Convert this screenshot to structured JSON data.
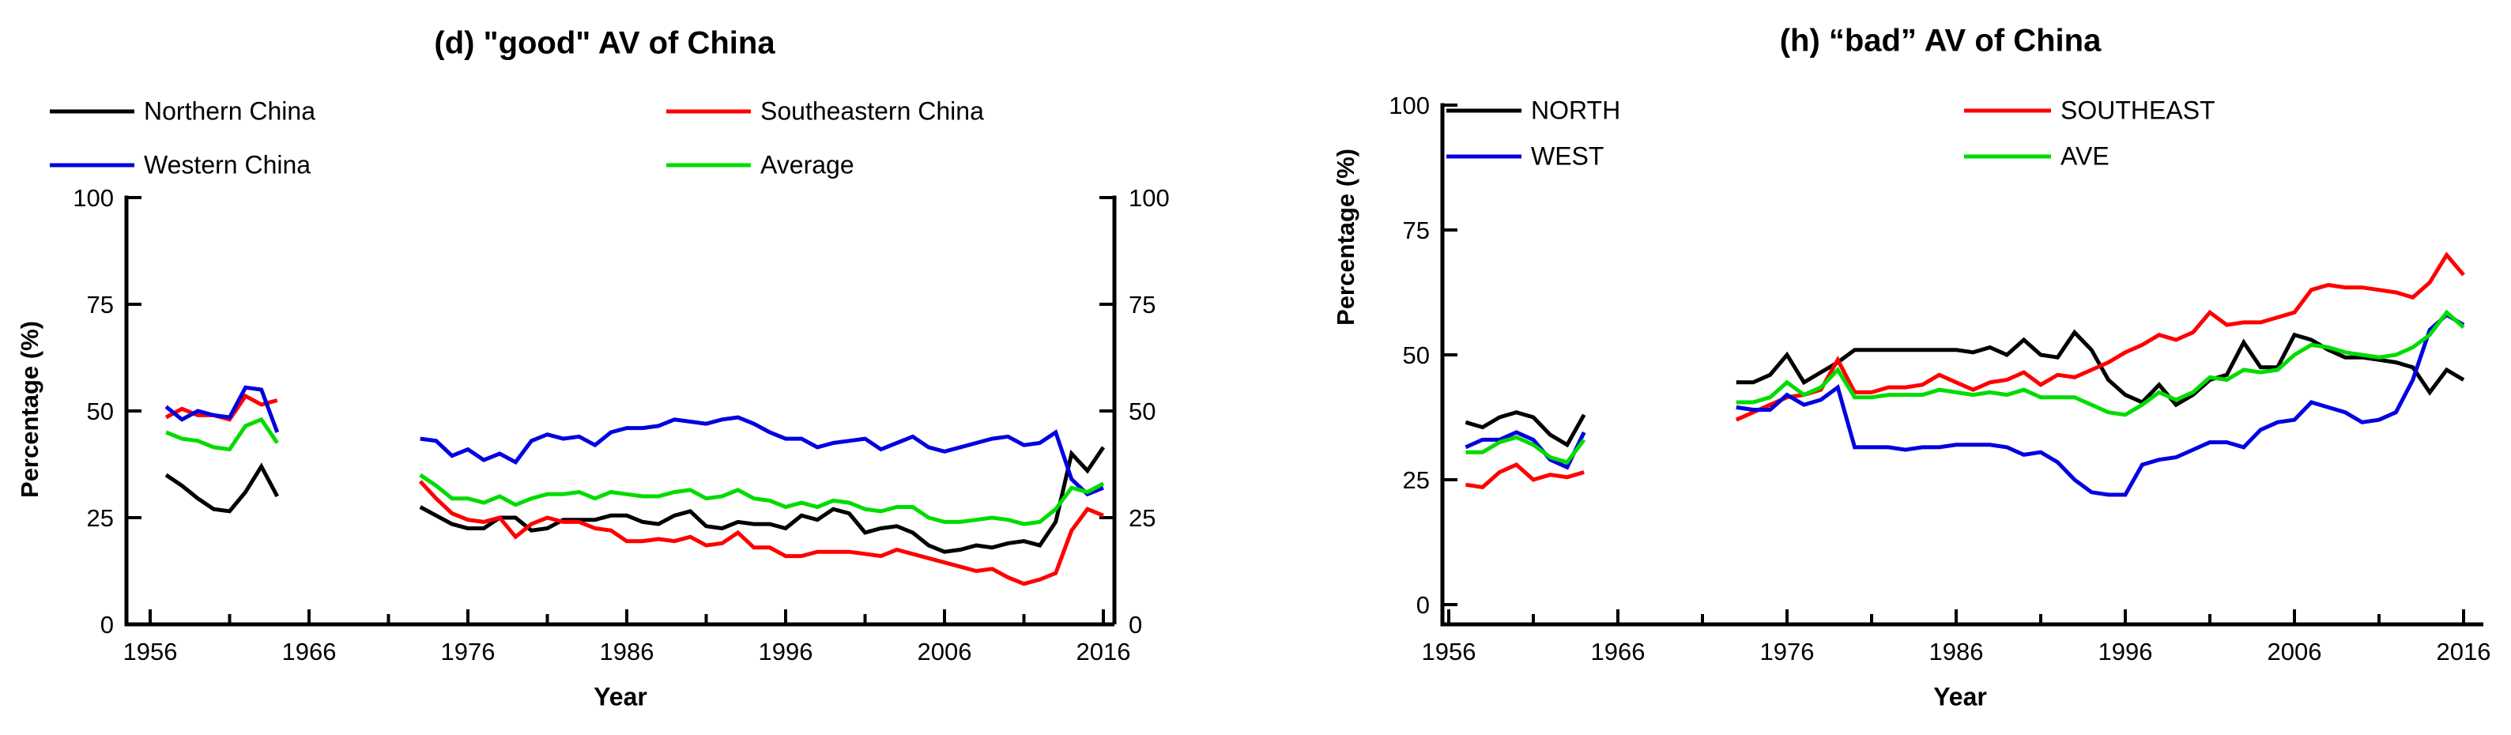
{
  "chart_data": [
    {
      "type": "line",
      "title": "(d) \"good\" AV of China",
      "ylabel": "Percentage  (%)",
      "xlabel": "Year",
      "ylim": [
        0,
        100
      ],
      "xlim": [
        1956,
        2016
      ],
      "y_ticks": [
        0,
        25,
        50,
        75,
        100
      ],
      "x_ticks": [
        1956,
        1966,
        1976,
        1986,
        1996,
        2006,
        2016
      ],
      "x_minor_ticks": [
        1961,
        1971,
        1981,
        1991,
        2001,
        2011
      ],
      "dual_y_axis": true,
      "grid": false,
      "legend_position": "above plot, two columns",
      "data_gap_years": "1965-1972",
      "series": [
        {
          "name": "Northern China",
          "color": "#000000",
          "segments": [
            {
              "start_year": 1957,
              "values": [
                35,
                32.5,
                29.5,
                27,
                26.5,
                31,
                37,
                30
              ]
            },
            {
              "start_year": 1973,
              "values": [
                27.5,
                25.5,
                23.5,
                22.5,
                22.5,
                25,
                25,
                22,
                22.5,
                24.5,
                24.5,
                24.5,
                25.5,
                25.5,
                24,
                23.5,
                25.5,
                26.5,
                23,
                22.5,
                24,
                23.5,
                23.5,
                22.5,
                25.5,
                24.5,
                27,
                26,
                21.5,
                22.5,
                23,
                21.5,
                18.5,
                17,
                17.5,
                18.5,
                18,
                19,
                19.5,
                18.5,
                24,
                40,
                36,
                41.5
              ]
            }
          ]
        },
        {
          "name": "Southeastern China",
          "color": "#FF0000",
          "segments": [
            {
              "start_year": 1957,
              "values": [
                48.5,
                50.5,
                49,
                49,
                48,
                53.5,
                51.5,
                52.5
              ]
            },
            {
              "start_year": 1973,
              "values": [
                33.5,
                29.5,
                26,
                24.5,
                24,
                25,
                20.5,
                23.5,
                25,
                24,
                24,
                22.5,
                22,
                19.5,
                19.5,
                20,
                19.5,
                20.5,
                18.5,
                19,
                21.5,
                18,
                18,
                16,
                16,
                17,
                17,
                17,
                16.5,
                16,
                17.5,
                16.5,
                15.5,
                14.5,
                13.5,
                12.5,
                13,
                11,
                9.5,
                10.5,
                12,
                22,
                27,
                25.5
              ]
            }
          ]
        },
        {
          "name": "Western China",
          "color": "#0000E0",
          "segments": [
            {
              "start_year": 1957,
              "values": [
                51,
                48,
                50,
                49,
                48.5,
                55.5,
                55,
                45
              ]
            },
            {
              "start_year": 1973,
              "values": [
                43.5,
                43,
                39.5,
                41,
                38.5,
                40,
                38,
                43,
                44.5,
                43.5,
                44,
                42,
                45,
                46,
                46,
                46.5,
                48,
                47.5,
                47,
                48,
                48.5,
                47,
                45,
                43.5,
                43.5,
                41.5,
                42.5,
                43,
                43.5,
                41,
                42.5,
                44,
                41.5,
                40.5,
                41.5,
                42.5,
                43.5,
                44,
                42,
                42.5,
                45,
                34,
                30.5,
                32
              ]
            }
          ]
        },
        {
          "name": "Average",
          "color": "#00DC00",
          "segments": [
            {
              "start_year": 1957,
              "values": [
                45,
                43.5,
                43,
                41.5,
                41,
                46.5,
                48,
                42.5
              ]
            },
            {
              "start_year": 1973,
              "values": [
                35,
                32.5,
                29.5,
                29.5,
                28.5,
                30,
                28,
                29.5,
                30.5,
                30.5,
                31,
                29.5,
                31,
                30.5,
                30,
                30,
                31,
                31.5,
                29.5,
                30,
                31.5,
                29.5,
                29,
                27.5,
                28.5,
                27.5,
                29,
                28.5,
                27,
                26.5,
                27.5,
                27.5,
                25,
                24,
                24,
                24.5,
                25,
                24.5,
                23.5,
                24,
                27,
                32,
                31,
                33
              ]
            }
          ]
        }
      ]
    },
    {
      "type": "line",
      "title": "(h) “bad” AV of China",
      "ylabel": "Percentage (%)",
      "xlabel": "Year",
      "ylim": [
        0,
        100
      ],
      "xlim": [
        1956,
        2016
      ],
      "y_ticks": [
        0,
        25,
        50,
        75,
        100
      ],
      "x_ticks": [
        1956,
        1966,
        1976,
        1986,
        1996,
        2006,
        2016
      ],
      "x_minor_ticks": [
        1961,
        1971,
        1981,
        1991,
        2001,
        2011
      ],
      "dual_y_axis": false,
      "grid": false,
      "legend_position": "inside plot top, two columns",
      "data_gap_years": "1965-1972",
      "series": [
        {
          "name": "NORTH",
          "color": "#000000",
          "segments": [
            {
              "start_year": 1957,
              "values": [
                36.5,
                35.5,
                37.5,
                38.5,
                37.5,
                34,
                32,
                38
              ]
            },
            {
              "start_year": 1973,
              "values": [
                44.5,
                44.5,
                46,
                50,
                44.5,
                46.5,
                48.5,
                51,
                51,
                51,
                51,
                51,
                51,
                51,
                50.5,
                51.5,
                50,
                53,
                50,
                49.5,
                54.5,
                51,
                45,
                42,
                40.5,
                44,
                40,
                42,
                45,
                46,
                52.5,
                47.5,
                47.5,
                54,
                53,
                51,
                49.5,
                49.5,
                49,
                48.5,
                47.5,
                42.5,
                47,
                45
              ]
            }
          ]
        },
        {
          "name": "SOUTHEAST",
          "color": "#FF0000",
          "segments": [
            {
              "start_year": 1957,
              "values": [
                24,
                23.5,
                26.5,
                28,
                25,
                26,
                25.5,
                26.5
              ]
            },
            {
              "start_year": 1973,
              "values": [
                37,
                38.5,
                40,
                41.5,
                42,
                43,
                49,
                42.5,
                42.5,
                43.5,
                43.5,
                44,
                46,
                44.5,
                43,
                44.5,
                45,
                46.5,
                44,
                46,
                45.5,
                47,
                48.5,
                50.5,
                52,
                54,
                53,
                54.5,
                58.5,
                56,
                56.5,
                56.5,
                57.5,
                58.5,
                63,
                64,
                63.5,
                63.5,
                63,
                62.5,
                61.5,
                64.5,
                70,
                66
              ]
            }
          ]
        },
        {
          "name": "WEST",
          "color": "#0000E0",
          "segments": [
            {
              "start_year": 1957,
              "values": [
                31.5,
                33,
                33,
                34.5,
                33,
                29,
                27.5,
                34.5
              ]
            },
            {
              "start_year": 1973,
              "values": [
                39.5,
                39,
                39,
                42,
                40,
                41,
                43.5,
                31.5,
                31.5,
                31.5,
                31,
                31.5,
                31.5,
                32,
                32,
                32,
                31.5,
                30,
                30.5,
                28.5,
                25,
                22.5,
                22,
                22,
                28,
                29,
                29.5,
                31,
                32.5,
                32.5,
                31.5,
                35,
                36.5,
                37,
                40.5,
                39.5,
                38.5,
                36.5,
                37,
                38.5,
                45,
                55,
                58,
                56
              ]
            }
          ]
        },
        {
          "name": "AVE",
          "color": "#00DC00",
          "segments": [
            {
              "start_year": 1957,
              "values": [
                30.5,
                30.5,
                32.5,
                33.5,
                32,
                29.5,
                28.5,
                33
              ]
            },
            {
              "start_year": 1973,
              "values": [
                40.5,
                40.5,
                41.5,
                44.5,
                42,
                43.5,
                47,
                41.5,
                41.5,
                42,
                42,
                42,
                43,
                42.5,
                42,
                42.5,
                42,
                43,
                41.5,
                41.5,
                41.5,
                40,
                38.5,
                38,
                40,
                42.5,
                41,
                42.5,
                45.5,
                45,
                47,
                46.5,
                47,
                50,
                52,
                51.5,
                50.5,
                50,
                49.5,
                50,
                51.5,
                54,
                58.5,
                55.5
              ]
            }
          ]
        }
      ]
    }
  ]
}
